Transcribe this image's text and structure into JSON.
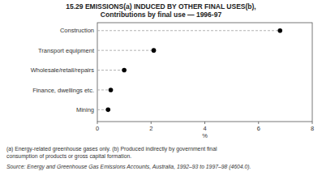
{
  "chart_data": {
    "type": "dot",
    "orientation": "horizontal",
    "title": "15.29   EMISSIONS(a) INDUCED BY OTHER FINAL USES(b),",
    "subtitle": "Contributions by final use — 1996-97",
    "categories": [
      "Mining",
      "Finance, dwellings etc.",
      "Wholesale/retail/repairs",
      "Transport equipment",
      "Construction"
    ],
    "values": [
      0.4,
      0.5,
      1.0,
      2.1,
      6.8
    ],
    "color": "#000000",
    "line_style": "dashed",
    "xlim": [
      0,
      8
    ],
    "xticks": [
      0,
      2,
      4,
      6,
      8
    ],
    "xlabel": "%",
    "grid": false,
    "annotations": [
      "(a) Energy-related greenhouse gases only.  (b) Produced indirectly by government final",
      "consumption of products or gross capital formation.",
      "Source:  Energy and Greenhouse Gas Emissions Accounts, Australia, 1992–93 to 1997–98 (4604.0)."
    ]
  }
}
